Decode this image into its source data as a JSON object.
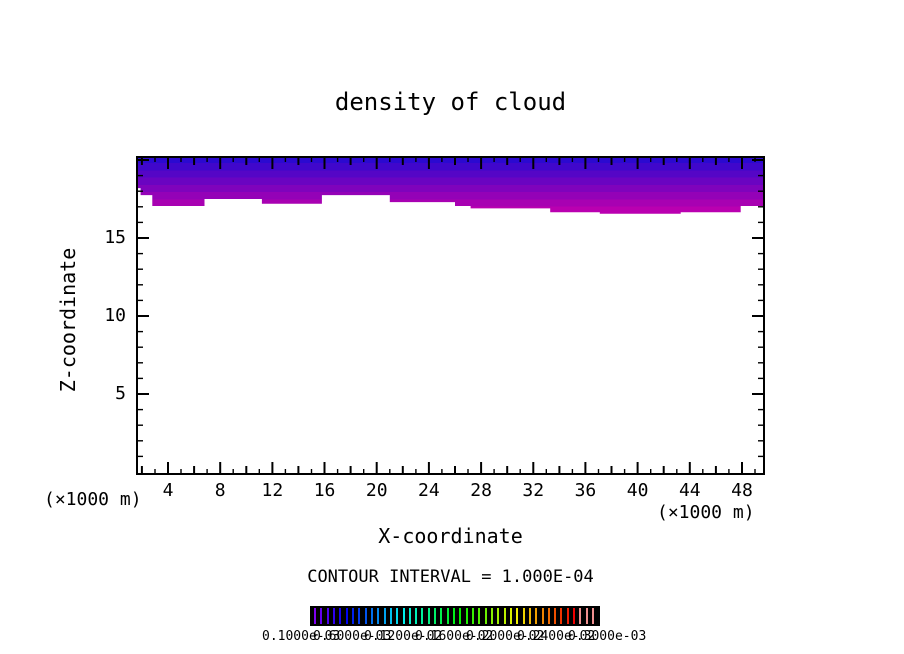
{
  "chart_data": {
    "type": "filled-contour",
    "title": "density of cloud",
    "xlabel": "X-coordinate",
    "ylabel": "Z-coordinate",
    "unit_note_left": "(×1000 m)",
    "unit_note_right": "(×1000 m)",
    "contour_interval_note": "CONTOUR INTERVAL = 1.000E-04",
    "contour_interval": "1.000E-04",
    "xlim": [
      1.55,
      49.75
    ],
    "zlim": [
      -0.2,
      20.26
    ],
    "x_major_ticks": [
      4,
      8,
      12,
      16,
      20,
      24,
      28,
      32,
      36,
      40,
      44,
      48
    ],
    "z_major_ticks": [
      5,
      10,
      15
    ],
    "minor_tick_step": 1,
    "grid": false,
    "cloud": {
      "description": "cloud density fill occupying top of domain, blue at top grading to magenta at cloud base",
      "top_z": 20.26,
      "bottom_profile": [
        [
          1.55,
          18.2
        ],
        [
          1.9,
          17.75
        ],
        [
          2.8,
          17.05
        ],
        [
          6.8,
          17.5
        ],
        [
          11.2,
          17.2
        ],
        [
          15.8,
          17.75
        ],
        [
          21.0,
          17.3
        ],
        [
          26.0,
          17.05
        ],
        [
          27.2,
          16.9
        ],
        [
          33.3,
          16.65
        ],
        [
          37.1,
          16.55
        ],
        [
          43.3,
          16.65
        ],
        [
          47.9,
          17.05
        ]
      ],
      "layer_colors": [
        "#2b09d0",
        "#4007cb",
        "#5506c6",
        "#6a04c1",
        "#7f03bc",
        "#9402b7",
        "#a801b2",
        "#ba00b0"
      ]
    },
    "colorbar": {
      "background": "#000000",
      "stripe_count": 45,
      "hue_start": 272,
      "hue_end": 0,
      "pink_tail_count": 3,
      "pink_color": "#f08f8f",
      "labels": [
        "0.1000e-03",
        "0.6000e-03",
        "0.1200e-02",
        "0.1600e-02",
        "0.2000e-02",
        "0.2400e-02",
        "0.3000e-03"
      ]
    }
  }
}
